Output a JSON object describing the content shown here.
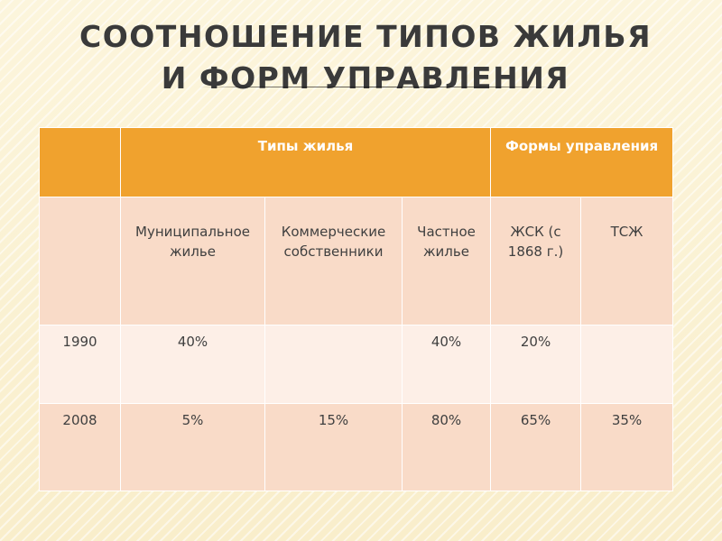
{
  "title": "СООТНОШЕНИЕ ТИПОВ ЖИЛЬЯ И ФОРМ УПРАВЛЕНИЯ",
  "table": {
    "group_headers": {
      "corner": "",
      "housing_types": "Типы жилья",
      "management_forms": "Формы управления"
    },
    "sub_headers": {
      "corner": "",
      "municipal": "Муниципальное жилье",
      "commercial": "Коммерческие собственники",
      "private": "Частное жилье",
      "zhsk": "ЖСК (с 1868 г.)",
      "tszh": "ТСЖ"
    },
    "rows": [
      {
        "year": "1990",
        "municipal": "40%",
        "commercial": "",
        "private": "40%",
        "zhsk": "20%",
        "tszh": ""
      },
      {
        "year": "2008",
        "municipal": "5%",
        "commercial": "15%",
        "private": "80%",
        "zhsk": "65%",
        "tszh": "35%"
      }
    ]
  }
}
